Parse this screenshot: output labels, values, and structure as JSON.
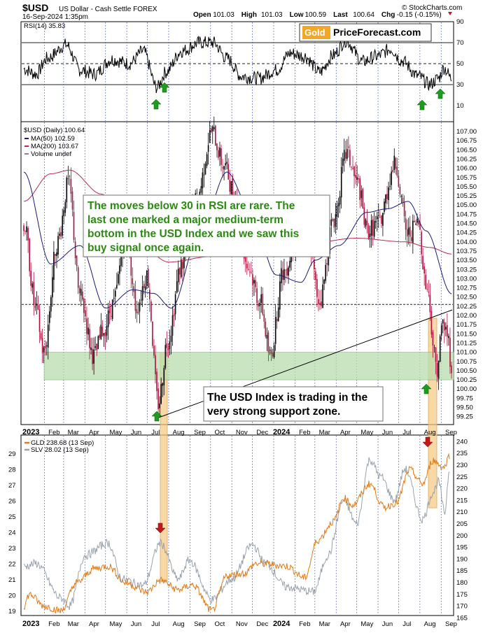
{
  "header": {
    "symbol": "$USD",
    "name": "US Dollar - Cash Settle  FOREX",
    "date": "16-Sep-2024 1:35pm",
    "source": "© StockCharts.com",
    "stats": [
      {
        "label": "Open",
        "value": "101.03"
      },
      {
        "label": "High",
        "value": "101.03"
      },
      {
        "label": "Low",
        "value": "100.59"
      },
      {
        "label": "Last",
        "value": "100.64"
      },
      {
        "label": "Chg",
        "value": "-0.15 (-0.15%)"
      }
    ]
  },
  "logo": {
    "part1": "Gold",
    "part2": "PriceForecast.com"
  },
  "rsi_panel": {
    "label": "RSI(14) 35.83",
    "ticks": [
      "90",
      "70",
      "50",
      "30",
      "10"
    ]
  },
  "price_panel": {
    "label": "$USD (Daily) 100.64",
    "legend": [
      {
        "text": "MA(50) 102.59",
        "color": "#1a1a80"
      },
      {
        "text": "MA(200) 103.67",
        "color": "#c0294a"
      },
      {
        "text": "Volume undef",
        "color": "#888888"
      }
    ],
    "ticks": [
      "107.00",
      "106.75",
      "106.50",
      "106.25",
      "106.00",
      "105.75",
      "105.50",
      "105.25",
      "105.00",
      "104.75",
      "104.50",
      "104.25",
      "104.00",
      "103.75",
      "103.50",
      "103.25",
      "103.00",
      "102.75",
      "102.50",
      "102.25",
      "102.00",
      "101.75",
      "101.50",
      "101.25",
      "101.00",
      "100.75",
      "100.50",
      "100.25",
      "100.00",
      "99.75",
      "99.50",
      "99.25"
    ]
  },
  "annotations": {
    "note1": [
      "The moves below 30 in RSI are rare. The",
      "last one marked a major medium-term",
      "bottom in the USD Index and we saw this",
      "buy signal once again."
    ],
    "note2": [
      "The USD Index is trading in the",
      "very strong support zone."
    ]
  },
  "metals_panel": {
    "legend": [
      {
        "text": "GLD 238.68 (13 Sep)",
        "color": "#e07b1a"
      },
      {
        "text": "SLV 28.02 (13 Sep)",
        "color": "#9aa3ad"
      }
    ],
    "left_ticks": [
      "29",
      "28",
      "27",
      "26",
      "25",
      "24",
      "23",
      "22",
      "21",
      "20",
      "19"
    ],
    "right_ticks": [
      "240",
      "235",
      "230",
      "225",
      "220",
      "215",
      "210",
      "205",
      "200",
      "195",
      "190",
      "185",
      "180",
      "175",
      "170",
      "165"
    ]
  },
  "x_labels": [
    "2023",
    "Feb",
    "Mar",
    "Apr",
    "May",
    "Jun",
    "Jul",
    "Aug",
    "Sep",
    "Oct",
    "Nov",
    "Dec",
    "2024",
    "Feb",
    "Mar",
    "Apr",
    "May",
    "Jun",
    "Jul",
    "Aug",
    "Sep"
  ],
  "colors": {
    "gold": "#e07b1a",
    "silver": "#9aa3ad",
    "up": "#000000",
    "down": "#b0103a",
    "ma50": "#1a1a80",
    "ma200": "#c0294a",
    "support": "#b8dcae",
    "highlight": "#f5c77e",
    "arrow_up": "#1e9b1e",
    "arrow_down": "#c21a1a",
    "note_text": "#2a8a12"
  },
  "chart_data": [
    {
      "type": "line",
      "title": "RSI(14) 35.83",
      "ylim": [
        0,
        100
      ],
      "x": [
        "2023-01",
        "2023-02",
        "2023-03",
        "2023-04",
        "2023-05",
        "2023-06",
        "2023-07",
        "2023-08",
        "2023-09",
        "2023-10",
        "2023-11",
        "2023-12",
        "2024-01",
        "2024-02",
        "2024-03",
        "2024-04",
        "2024-05",
        "2024-06",
        "2024-07",
        "2024-08",
        "2024-09"
      ],
      "series": [
        {
          "name": "RSI(14)",
          "values": [
            42,
            48,
            58,
            44,
            50,
            52,
            32,
            50,
            60,
            66,
            42,
            40,
            40,
            58,
            55,
            58,
            55,
            62,
            48,
            35,
            40
          ]
        }
      ],
      "reference_lines": [
        70,
        50,
        30
      ]
    },
    {
      "type": "line",
      "title": "$USD (Daily) 100.64",
      "ylim": [
        99.25,
        107.0
      ],
      "x": [
        "2023-01",
        "2023-02",
        "2023-03",
        "2023-04",
        "2023-05",
        "2023-06",
        "2023-07",
        "2023-08",
        "2023-09",
        "2023-10",
        "2023-11",
        "2023-12",
        "2024-01",
        "2024-02",
        "2024-03",
        "2024-04",
        "2024-05",
        "2024-06",
        "2024-07",
        "2024-08",
        "2024-09"
      ],
      "series": [
        {
          "name": "$USD (Daily)",
          "values": [
            103.2,
            104.3,
            102.6,
            101.6,
            102.8,
            102.6,
            100.3,
            102.2,
            104.8,
            106.2,
            103.5,
            101.8,
            102.9,
            104.2,
            103.8,
            105.9,
            104.5,
            105.4,
            104.1,
            101.4,
            101.2
          ]
        },
        {
          "name": "MA(50)",
          "values": [
            104.0,
            103.3,
            103.8,
            102.9,
            102.1,
            102.7,
            102.9,
            102.3,
            103.1,
            104.6,
            105.2,
            104.9,
            103.6,
            102.8,
            103.3,
            104.1,
            104.5,
            104.8,
            104.9,
            103.9,
            102.6
          ]
        },
        {
          "name": "MA(200)",
          "values": [
            106.2,
            106.0,
            106.1,
            105.7,
            104.9,
            104.2,
            103.6,
            103.5,
            103.6,
            103.7,
            103.8,
            103.9,
            103.9,
            103.9,
            104.0,
            104.1,
            104.2,
            104.2,
            104.0,
            103.9,
            103.7
          ]
        }
      ],
      "annotations": [
        "The moves below 30 in RSI are rare. The last one marked a major medium-term bottom in the USD Index and we saw this buy signal once again.",
        "The USD Index is trading in the very strong support zone."
      ],
      "support_zone": [
        100.25,
        101.0
      ]
    },
    {
      "type": "line",
      "x": [
        "2023-01",
        "2023-02",
        "2023-03",
        "2023-04",
        "2023-05",
        "2023-06",
        "2023-07",
        "2023-08",
        "2023-09",
        "2023-10",
        "2023-11",
        "2023-12",
        "2024-01",
        "2024-02",
        "2024-03",
        "2024-04",
        "2024-05",
        "2024-06",
        "2024-07",
        "2024-08",
        "2024-09"
      ],
      "ylim_left": [
        18.5,
        29.8
      ],
      "ylim_right": [
        165,
        240
      ],
      "series": [
        {
          "name": "GLD",
          "axis": "right",
          "values": [
            170,
            175,
            176,
            183,
            180,
            178,
            181,
            179,
            177,
            172,
            182,
            186,
            188,
            184,
            193,
            209,
            217,
            215,
            218,
            227,
            234
          ]
        },
        {
          "name": "SLV",
          "axis": "left",
          "values": [
            21.8,
            21.7,
            21.0,
            22.5,
            22.3,
            21.6,
            22.0,
            23.4,
            21.6,
            20.4,
            21.2,
            22.4,
            21.0,
            20.5,
            22.2,
            24.9,
            27.8,
            27.0,
            26.8,
            25.0,
            28.0
          ]
        }
      ]
    }
  ]
}
